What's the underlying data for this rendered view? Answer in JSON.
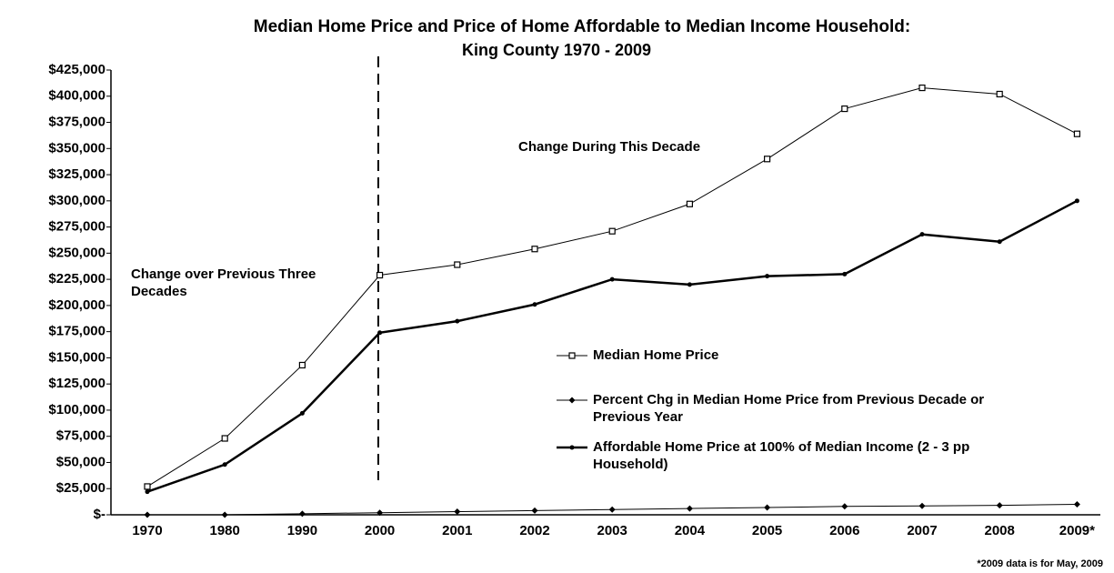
{
  "chart_data": {
    "type": "line",
    "title": "Median Home Price and Price of Home Affordable to Median Income Household:",
    "subtitle": "King County 1970 - 2009",
    "categories": [
      "1970",
      "1980",
      "1990",
      "2000",
      "2001",
      "2002",
      "2003",
      "2004",
      "2005",
      "2006",
      "2007",
      "2008",
      "2009*"
    ],
    "series": [
      {
        "name": "Median Home Price",
        "color": "#000000",
        "marker": "square",
        "line_width": 1,
        "values": [
          27000,
          73000,
          143000,
          229000,
          239000,
          254000,
          271000,
          297000,
          340000,
          388000,
          408000,
          402000,
          364000
        ]
      },
      {
        "name": "Percent Chg in Median Home Price from Previous Decade or Previous Year",
        "color": "#000000",
        "marker": "diamond",
        "line_width": 1,
        "values": [
          0,
          0,
          1000,
          2000,
          3000,
          4000,
          5000,
          6000,
          7000,
          8000,
          8500,
          9000,
          10000
        ]
      },
      {
        "name": "Affordable Home Price  at 100% of Median Income (2 - 3 pp Household)",
        "color": "#000000",
        "marker": "dot",
        "line_width": 2.5,
        "values": [
          22000,
          48000,
          97000,
          174000,
          185000,
          201000,
          225000,
          220000,
          228000,
          230000,
          268000,
          261000,
          300000
        ]
      }
    ],
    "ylim": [
      0,
      425000
    ],
    "yticks": [
      {
        "value": 0,
        "label": "$-"
      },
      {
        "value": 25000,
        "label": "$25,000"
      },
      {
        "value": 50000,
        "label": "$50,000"
      },
      {
        "value": 75000,
        "label": "$75,000"
      },
      {
        "value": 100000,
        "label": "$100,000"
      },
      {
        "value": 125000,
        "label": "$125,000"
      },
      {
        "value": 150000,
        "label": "$150,000"
      },
      {
        "value": 175000,
        "label": "$175,000"
      },
      {
        "value": 200000,
        "label": "$200,000"
      },
      {
        "value": 225000,
        "label": "$225,000"
      },
      {
        "value": 250000,
        "label": "$250,000"
      },
      {
        "value": 275000,
        "label": "$275,000"
      },
      {
        "value": 300000,
        "label": "$300,000"
      },
      {
        "value": 325000,
        "label": "$325,000"
      },
      {
        "value": 350000,
        "label": "$350,000"
      },
      {
        "value": 375000,
        "label": "$375,000"
      },
      {
        "value": 400000,
        "label": "$400,000"
      },
      {
        "value": 425000,
        "label": "$425,000"
      }
    ],
    "grid": false,
    "annotations": [
      "Change over Previous Three Decades",
      "Change During This Decade"
    ],
    "footnote": "*2009 data is for May, 2009"
  }
}
